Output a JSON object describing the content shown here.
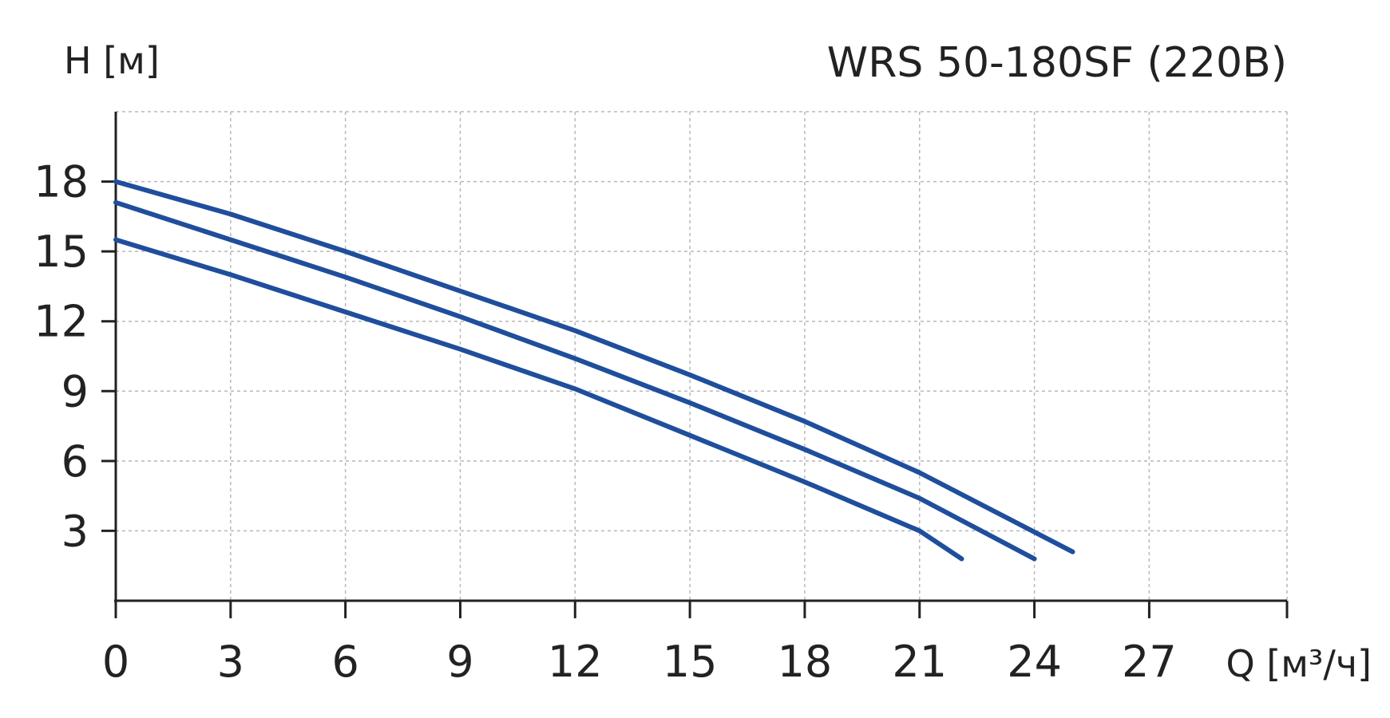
{
  "chart_data": {
    "type": "line",
    "title": "WRS 50-180SF (220В)",
    "xlabel": "Q [м³/ч]",
    "ylabel": "H [м]",
    "xlim": [
      0,
      30.6
    ],
    "ylim": [
      0,
      21
    ],
    "x_ticks": [
      "0",
      "3",
      "6",
      "9",
      "12",
      "15",
      "18",
      "21",
      "24",
      "27"
    ],
    "y_ticks": [
      "3",
      "6",
      "9",
      "12",
      "15",
      "18"
    ],
    "grid": true,
    "color": "#1f4e9c",
    "series": [
      {
        "x": [
          0,
          3,
          6,
          9,
          12,
          15,
          18,
          21,
          25
        ],
        "y": [
          18.0,
          16.6,
          15.0,
          13.3,
          11.6,
          9.7,
          7.7,
          5.5,
          2.1
        ]
      },
      {
        "x": [
          0,
          3,
          6,
          9,
          12,
          15,
          18,
          21,
          24
        ],
        "y": [
          17.1,
          15.5,
          13.9,
          12.2,
          10.4,
          8.5,
          6.5,
          4.4,
          1.8
        ]
      },
      {
        "x": [
          0,
          3,
          6,
          9,
          12,
          15,
          18,
          21,
          22.1
        ],
        "y": [
          15.5,
          14.0,
          12.4,
          10.8,
          9.1,
          7.1,
          5.1,
          3.0,
          1.8
        ]
      }
    ]
  }
}
